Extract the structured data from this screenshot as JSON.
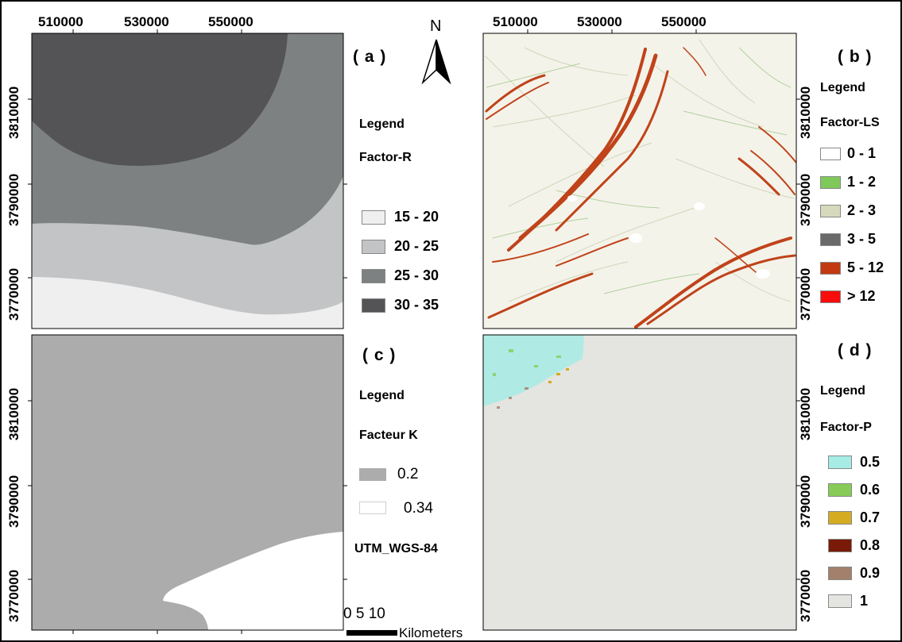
{
  "top_x_ticks": [
    "510000",
    "530000",
    "550000"
  ],
  "y_ticks": [
    "3810000",
    "3790000",
    "3770000"
  ],
  "north": "N",
  "panel_a": {
    "label": "( a )",
    "legend_title": "Legend",
    "factor_title": "Factor-R",
    "classes": [
      {
        "label": "15 - 20",
        "color": "#efefef"
      },
      {
        "label": "20 - 25",
        "color": "#c2c4c5"
      },
      {
        "label": "25 - 30",
        "color": "#7e8182"
      },
      {
        "label": "30 - 35",
        "color": "#545456"
      }
    ]
  },
  "panel_b": {
    "label": "( b )",
    "legend_title": "Legend",
    "factor_title": "Factor-LS",
    "classes": [
      {
        "label": "0 - 1",
        "color": "#ffffff"
      },
      {
        "label": "1 - 2",
        "color": "#7ec95a"
      },
      {
        "label": "2 - 3",
        "color": "#d7d9bd"
      },
      {
        "label": "3 - 5",
        "color": "#6a6a6a"
      },
      {
        "label": "5 - 12",
        "color": "#c33a12"
      },
      {
        "label": "> 12",
        "color": "#f80c0c"
      }
    ]
  },
  "panel_c": {
    "label": "( c )",
    "legend_title": "Legend",
    "factor_title": "Facteur K",
    "classes": [
      {
        "label": "0.2",
        "color": "#acacac"
      },
      {
        "label": "0.34",
        "color": "#ffffff"
      }
    ],
    "projection": "UTM_WGS-84",
    "scale_numbers": "0  5 10",
    "scale_unit": "Kilometers"
  },
  "panel_d": {
    "label": "( d )",
    "legend_title": "Legend",
    "factor_title": "Factor-P",
    "classes": [
      {
        "label": "0.5",
        "color": "#a6ece4"
      },
      {
        "label": "0.6",
        "color": "#86cc56"
      },
      {
        "label": "0.7",
        "color": "#d3ac22"
      },
      {
        "label": "0.8",
        "color": "#7a1a08"
      },
      {
        "label": "0.9",
        "color": "#a2806b"
      },
      {
        "label": "1",
        "color": "#e4e4e0"
      }
    ]
  }
}
